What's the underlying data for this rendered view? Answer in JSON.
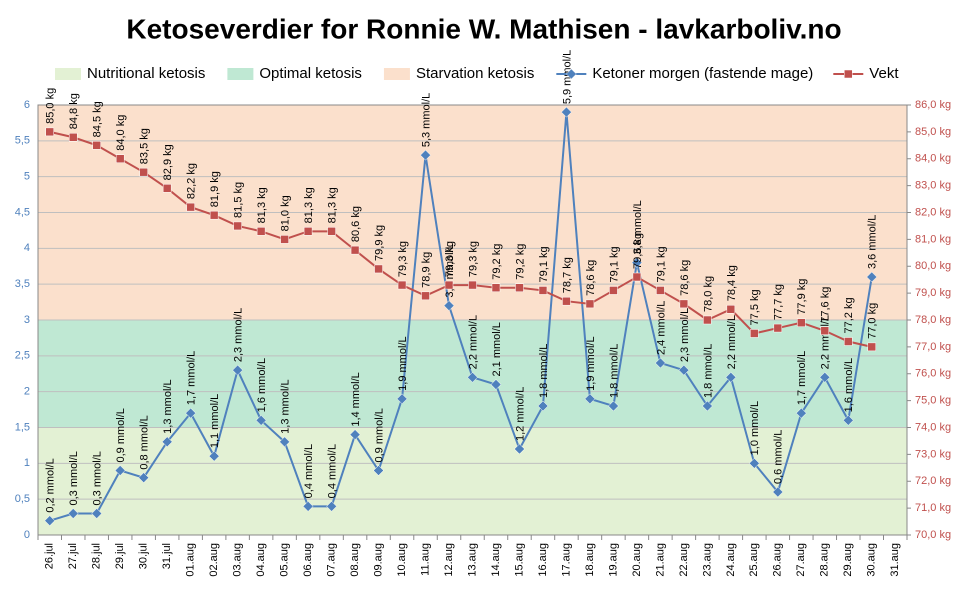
{
  "chart_data": {
    "type": "line",
    "title": "Ketoseverdier for Ronnie W. Mathisen - lavkarboliv.no",
    "categories": [
      "26.jul",
      "27.jul",
      "28.jul",
      "29.jul",
      "30.jul",
      "31.jul",
      "01.aug",
      "02.aug",
      "03.aug",
      "04.aug",
      "05.aug",
      "06.aug",
      "07.aug",
      "08.aug",
      "09.aug",
      "10.aug",
      "11.aug",
      "12.aug",
      "13.aug",
      "14.aug",
      "15.aug",
      "16.aug",
      "17.aug",
      "18.aug",
      "19.aug",
      "20.aug",
      "21.aug",
      "22.aug",
      "23.aug",
      "24.aug",
      "25.aug",
      "26.aug",
      "27.aug",
      "28.aug",
      "29.aug",
      "30.aug",
      "31.aug"
    ],
    "bands": [
      {
        "name": "Nutritional ketosis",
        "from": 0,
        "to": 1.5,
        "color": "#e3f1d4"
      },
      {
        "name": "Optimal ketosis",
        "from": 1.5,
        "to": 3,
        "color": "#bfe8d3"
      },
      {
        "name": "Starvation ketosis",
        "from": 3,
        "to": 6,
        "color": "#fbe0cc"
      }
    ],
    "series": [
      {
        "name": "Ketoner morgen (fastende mage)",
        "color": "#4f81bd",
        "marker": "diamond",
        "values": [
          0.2,
          0.3,
          0.3,
          0.9,
          0.8,
          1.3,
          1.7,
          1.1,
          2.3,
          1.6,
          1.3,
          0.4,
          0.4,
          1.4,
          0.9,
          1.9,
          5.3,
          3.2,
          2.2,
          2.1,
          1.2,
          1.8,
          5.9,
          1.9,
          1.8,
          3.8,
          2.4,
          2.3,
          1.8,
          2.2,
          1.0,
          0.6,
          1.7,
          2.2,
          1.6,
          3.6,
          null
        ],
        "value_labels": [
          "0,2 mmol/L",
          "0,3 mmol/L",
          "0,3 mmol/L",
          "0,9 mmol/L",
          "0,8 mmol/L",
          "1,3 mmol/L",
          "1,7 mmol/L",
          "1,1 mmol/L",
          "2,3 mmol/L",
          "1,6 mmol/L",
          "1,3 mmol/L",
          "0,4 mmol/L",
          "0,4 mmol/L",
          "1,4 mmol/L",
          "0,9 mmol/L",
          "1,9 mmol/L",
          "5,3 mmol/L",
          "3,2 mmol/L",
          "2,2 mmol/L",
          "2,1 mmol/L",
          "1,2 mmol/L",
          "1,8 mmol/L",
          "5,9 mmol/L",
          "1,9 mmol/L",
          "1,8 mmol/L",
          "3,8 mmol/L",
          "2,4 mmol/L",
          "2,3 mmol/L",
          "1,8 mmol/L",
          "2,2 mmol/L",
          "1,0 mmol/L",
          "0,6 mmol/L",
          "1,7 mmol/L",
          "2,2 mmol/L",
          "1,6 mmol/L",
          "3,6 mmol/L",
          null
        ]
      },
      {
        "name": "Vekt",
        "color": "#c0504d",
        "marker": "square",
        "axis": "y2",
        "values": [
          85.0,
          84.8,
          84.5,
          84.0,
          83.5,
          82.9,
          82.2,
          81.9,
          81.5,
          81.3,
          81.0,
          81.3,
          81.3,
          80.6,
          79.9,
          79.3,
          78.9,
          79.3,
          79.3,
          79.2,
          79.2,
          79.1,
          78.7,
          78.6,
          79.1,
          79.6,
          79.1,
          78.6,
          78.0,
          78.4,
          77.5,
          77.7,
          77.9,
          77.6,
          77.2,
          77.0,
          null
        ],
        "value_labels": [
          "85,0 kg",
          "84,8 kg",
          "84,5 kg",
          "84,0 kg",
          "83,5 kg",
          "82,9 kg",
          "82,2 kg",
          "81,9 kg",
          "81,5 kg",
          "81,3 kg",
          "81,0 kg",
          "81,3 kg",
          "81,3 kg",
          "80,6 kg",
          "79,9 kg",
          "79,3 kg",
          "78,9 kg",
          "79,3 kg",
          "79,3 kg",
          "79,2 kg",
          "79,2 kg",
          "79,1 kg",
          "78,7 kg",
          "78,6 kg",
          "79,1 kg",
          "79,6 kg",
          "79,1 kg",
          "78,6 kg",
          "78,0 kg",
          "78,4 kg",
          "77,5 kg",
          "77,7 kg",
          "77,9 kg",
          "77,6 kg",
          "77,2 kg",
          "77,0 kg",
          null
        ]
      }
    ],
    "ylim": [
      0,
      6
    ],
    "yticks": [
      0,
      {
        "value": 0.5,
        "label": "0,5"
      },
      1,
      {
        "value": 1.5,
        "label": "1,5"
      },
      2,
      {
        "value": 2.5,
        "label": "2,5"
      },
      3,
      {
        "value": 3.5,
        "label": "3,5"
      },
      4,
      {
        "value": 4.5,
        "label": "4,5"
      },
      5,
      {
        "value": 5.5,
        "label": "5,5"
      },
      6
    ],
    "y2lim": [
      70,
      86
    ],
    "y2ticks": [
      {
        "value": 70,
        "label": "70,0 kg"
      },
      {
        "value": 71,
        "label": "71,0 kg"
      },
      {
        "value": 72,
        "label": "72,0 kg"
      },
      {
        "value": 73,
        "label": "73,0 kg"
      },
      {
        "value": 74,
        "label": "74,0 kg"
      },
      {
        "value": 75,
        "label": "75,0 kg"
      },
      {
        "value": 76,
        "label": "76,0 kg"
      },
      {
        "value": 77,
        "label": "77,0 kg"
      },
      {
        "value": 78,
        "label": "78,0 kg"
      },
      {
        "value": 79,
        "label": "79,0 kg"
      },
      {
        "value": 80,
        "label": "80,0 kg"
      },
      {
        "value": 81,
        "label": "81,0 kg"
      },
      {
        "value": 82,
        "label": "82,0 kg"
      },
      {
        "value": 83,
        "label": "83,0 kg"
      },
      {
        "value": 84,
        "label": "84,0 kg"
      },
      {
        "value": 85,
        "label": "85,0 kg"
      },
      {
        "value": 86,
        "label": "86,0 kg"
      }
    ],
    "grid": true,
    "legend": "top"
  }
}
